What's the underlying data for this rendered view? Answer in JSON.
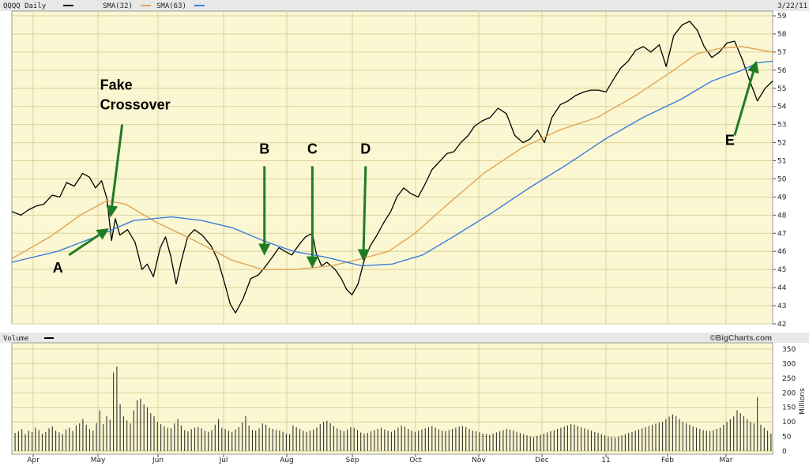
{
  "chart_data": [
    {
      "type": "line",
      "title": "QQQQ Daily",
      "date_label": "3/22/11",
      "legend": [
        {
          "label": "QQQQ Daily",
          "color": "#000000"
        },
        {
          "label": "SMA(32)",
          "color": "#e0a458"
        },
        {
          "label": "SMA(63)",
          "color": "#3b7ddd"
        }
      ],
      "x_ticks": [
        "Apr",
        "May",
        "Jun",
        "Jul",
        "Aug",
        "Sep",
        "Oct",
        "Nov",
        "Dec",
        "11",
        "Feb",
        "Mar"
      ],
      "y_ticks": [
        42,
        43,
        44,
        45,
        46,
        47,
        48,
        49,
        50,
        51,
        52,
        53,
        54,
        55,
        56,
        57,
        58,
        59
      ],
      "ylim": [
        42,
        59
      ],
      "xlim": [
        0,
        100
      ],
      "grid": true,
      "series": [
        {
          "name": "QQQQ Daily",
          "color": "#000000",
          "points": [
            [
              0,
              48.2
            ],
            [
              1.2,
              48.0
            ],
            [
              2.2,
              48.3
            ],
            [
              3.2,
              48.5
            ],
            [
              4.2,
              48.6
            ],
            [
              5.3,
              49.1
            ],
            [
              6.3,
              49.0
            ],
            [
              7.2,
              49.8
            ],
            [
              8.2,
              49.6
            ],
            [
              9.3,
              50.3
            ],
            [
              10.2,
              50.1
            ],
            [
              11.0,
              49.5
            ],
            [
              11.8,
              49.9
            ],
            [
              12.5,
              48.9
            ],
            [
              13.1,
              46.6
            ],
            [
              13.6,
              47.8
            ],
            [
              14.2,
              46.9
            ],
            [
              15.2,
              47.2
            ],
            [
              16.2,
              46.5
            ],
            [
              17.1,
              45.0
            ],
            [
              17.8,
              45.3
            ],
            [
              18.6,
              44.6
            ],
            [
              19.5,
              46.2
            ],
            [
              20.2,
              46.8
            ],
            [
              20.9,
              45.7
            ],
            [
              21.6,
              44.2
            ],
            [
              22.3,
              45.5
            ],
            [
              23.1,
              46.8
            ],
            [
              24.0,
              47.2
            ],
            [
              25.0,
              46.9
            ],
            [
              26.2,
              46.3
            ],
            [
              27.1,
              45.5
            ],
            [
              28.0,
              44.2
            ],
            [
              28.7,
              43.1
            ],
            [
              29.4,
              42.6
            ],
            [
              30.4,
              43.4
            ],
            [
              31.4,
              44.5
            ],
            [
              32.4,
              44.7
            ],
            [
              33.2,
              45.1
            ],
            [
              34.1,
              45.6
            ],
            [
              35.1,
              46.2
            ],
            [
              35.9,
              46.0
            ],
            [
              36.8,
              45.8
            ],
            [
              37.8,
              46.4
            ],
            [
              38.6,
              46.8
            ],
            [
              39.5,
              47.0
            ],
            [
              40.0,
              45.9
            ],
            [
              40.7,
              45.2
            ],
            [
              41.4,
              45.4
            ],
            [
              42.5,
              45.0
            ],
            [
              43.3,
              44.5
            ],
            [
              44.0,
              43.9
            ],
            [
              44.7,
              43.6
            ],
            [
              45.5,
              44.2
            ],
            [
              46.3,
              45.5
            ],
            [
              47.1,
              46.3
            ],
            [
              48.0,
              46.9
            ],
            [
              48.9,
              47.6
            ],
            [
              49.8,
              48.2
            ],
            [
              50.6,
              49.0
            ],
            [
              51.5,
              49.5
            ],
            [
              52.4,
              49.2
            ],
            [
              53.4,
              49.0
            ],
            [
              54.3,
              49.7
            ],
            [
              55.2,
              50.5
            ],
            [
              56.1,
              50.9
            ],
            [
              57.2,
              51.4
            ],
            [
              58.1,
              51.5
            ],
            [
              59.0,
              52.0
            ],
            [
              60.0,
              52.4
            ],
            [
              60.8,
              52.9
            ],
            [
              61.8,
              53.2
            ],
            [
              62.9,
              53.4
            ],
            [
              63.9,
              53.9
            ],
            [
              65.0,
              53.6
            ],
            [
              66.1,
              52.4
            ],
            [
              67.2,
              52.0
            ],
            [
              68.1,
              52.2
            ],
            [
              69.1,
              52.7
            ],
            [
              70.0,
              52.0
            ],
            [
              71.0,
              53.4
            ],
            [
              72.1,
              54.1
            ],
            [
              73.1,
              54.3
            ],
            [
              74.1,
              54.6
            ],
            [
              75.2,
              54.8
            ],
            [
              76.1,
              54.9
            ],
            [
              77.1,
              54.9
            ],
            [
              78.1,
              54.8
            ],
            [
              79.1,
              55.5
            ],
            [
              80.0,
              56.1
            ],
            [
              81.0,
              56.5
            ],
            [
              82.0,
              57.1
            ],
            [
              83.0,
              57.3
            ],
            [
              84.0,
              57.0
            ],
            [
              85.1,
              57.4
            ],
            [
              86.0,
              56.2
            ],
            [
              87.0,
              57.9
            ],
            [
              88.1,
              58.5
            ],
            [
              89.1,
              58.7
            ],
            [
              90.1,
              58.2
            ],
            [
              91.0,
              57.3
            ],
            [
              92.0,
              56.7
            ],
            [
              93.0,
              57.0
            ],
            [
              94.0,
              57.5
            ],
            [
              95.0,
              57.6
            ],
            [
              96.0,
              56.6
            ],
            [
              97.0,
              55.4
            ],
            [
              98.0,
              54.3
            ],
            [
              99.0,
              55.0
            ],
            [
              100.0,
              55.4
            ]
          ]
        },
        {
          "name": "SMA(32)",
          "color": "#e0a458",
          "points": [
            [
              0,
              45.6
            ],
            [
              5,
              46.8
            ],
            [
              9,
              48.0
            ],
            [
              12.5,
              48.8
            ],
            [
              15,
              48.6
            ],
            [
              19,
              47.6
            ],
            [
              24,
              46.6
            ],
            [
              29,
              45.5
            ],
            [
              33,
              45.0
            ],
            [
              37,
              45.0
            ],
            [
              42,
              45.2
            ],
            [
              46,
              45.6
            ],
            [
              49.5,
              46.0
            ],
            [
              53,
              47.0
            ],
            [
              57,
              48.5
            ],
            [
              62,
              50.3
            ],
            [
              67,
              51.7
            ],
            [
              72,
              52.7
            ],
            [
              77,
              53.4
            ],
            [
              82,
              54.6
            ],
            [
              87,
              56.0
            ],
            [
              90,
              56.9
            ],
            [
              93,
              57.2
            ],
            [
              96,
              57.3
            ],
            [
              100,
              57.0
            ]
          ]
        },
        {
          "name": "SMA(63)",
          "color": "#3b7ddd",
          "points": [
            [
              0,
              45.4
            ],
            [
              6,
              46.0
            ],
            [
              11,
              46.8
            ],
            [
              16,
              47.7
            ],
            [
              21,
              47.9
            ],
            [
              25,
              47.7
            ],
            [
              29,
              47.3
            ],
            [
              33,
              46.6
            ],
            [
              37,
              46.0
            ],
            [
              41,
              45.7
            ],
            [
              46,
              45.2
            ],
            [
              50,
              45.3
            ],
            [
              54,
              45.8
            ],
            [
              58,
              46.8
            ],
            [
              63,
              48.1
            ],
            [
              68,
              49.5
            ],
            [
              73,
              50.8
            ],
            [
              78,
              52.2
            ],
            [
              83,
              53.4
            ],
            [
              88,
              54.4
            ],
            [
              92,
              55.4
            ],
            [
              96,
              56.0
            ],
            [
              98,
              56.4
            ],
            [
              100,
              56.5
            ]
          ]
        }
      ],
      "annotations": [
        {
          "label": "Fake",
          "line2": "Crossover",
          "arrow_from": [
            14.5,
            53.0
          ],
          "arrow_to": [
            13.0,
            48.0
          ]
        },
        {
          "label": "A",
          "arrow_from": [
            7.5,
            45.8
          ],
          "arrow_to": [
            12.5,
            47.2
          ]
        },
        {
          "label": "B",
          "arrow_from": [
            33.2,
            50.7
          ],
          "arrow_to": [
            33.2,
            45.9
          ]
        },
        {
          "label": "C",
          "arrow_from": [
            39.5,
            50.7
          ],
          "arrow_to": [
            39.5,
            45.2
          ]
        },
        {
          "label": "D",
          "arrow_from": [
            46.5,
            50.7
          ],
          "arrow_to": [
            46.2,
            45.6
          ]
        },
        {
          "label": "E",
          "arrow_from": [
            95.0,
            52.4
          ],
          "arrow_to": [
            97.8,
            56.4
          ]
        }
      ],
      "credit": "©BigCharts.com"
    },
    {
      "type": "bar",
      "title": "Volume",
      "ylabel": "Millions",
      "y_ticks": [
        0,
        50,
        100,
        150,
        200,
        250,
        300,
        350
      ],
      "ylim": [
        0,
        350
      ],
      "x_ticks": [
        "Apr",
        "May",
        "Jun",
        "Jul",
        "Aug",
        "Sep",
        "Oct",
        "Nov",
        "Dec",
        "11",
        "Feb",
        "Mar"
      ],
      "values": [
        62,
        68,
        75,
        58,
        70,
        65,
        80,
        72,
        60,
        66,
        78,
        85,
        70,
        64,
        58,
        74,
        80,
        69,
        88,
        95,
        110,
        90,
        76,
        70,
        96,
        140,
        92,
        120,
        108,
        270,
        290,
        160,
        120,
        105,
        95,
        140,
        175,
        180,
        160,
        150,
        130,
        120,
        100,
        92,
        85,
        80,
        78,
        95,
        110,
        88,
        72,
        68,
        75,
        80,
        82,
        78,
        70,
        66,
        72,
        90,
        110,
        80,
        76,
        70,
        66,
        74,
        82,
        98,
        120,
        88,
        72,
        70,
        78,
        95,
        90,
        80,
        76,
        72,
        70,
        66,
        60,
        58,
        88,
        82,
        76,
        70,
        66,
        70,
        74,
        80,
        92,
        100,
        104,
        96,
        86,
        78,
        72,
        68,
        74,
        82,
        80,
        72,
        64,
        60,
        62,
        68,
        72,
        76,
        80,
        74,
        70,
        66,
        72,
        80,
        88,
        84,
        76,
        70,
        66,
        70,
        74,
        78,
        82,
        86,
        80,
        74,
        70,
        68,
        72,
        76,
        80,
        84,
        86,
        82,
        76,
        70,
        68,
        64,
        60,
        58,
        56,
        60,
        64,
        68,
        72,
        76,
        74,
        70,
        66,
        62,
        58,
        54,
        50,
        48,
        52,
        56,
        60,
        64,
        68,
        72,
        76,
        80,
        84,
        88,
        92,
        90,
        86,
        82,
        78,
        74,
        70,
        66,
        62,
        58,
        54,
        50,
        48,
        46,
        50,
        54,
        58,
        62,
        66,
        70,
        74,
        78,
        82,
        86,
        90,
        94,
        98,
        100,
        110,
        118,
        126,
        120,
        110,
        100,
        95,
        90,
        85,
        80,
        76,
        72,
        70,
        68,
        72,
        76,
        80,
        90,
        100,
        110,
        120,
        140,
        130,
        120,
        110,
        100,
        95,
        185,
        90,
        80,
        70,
        60
      ]
    }
  ]
}
